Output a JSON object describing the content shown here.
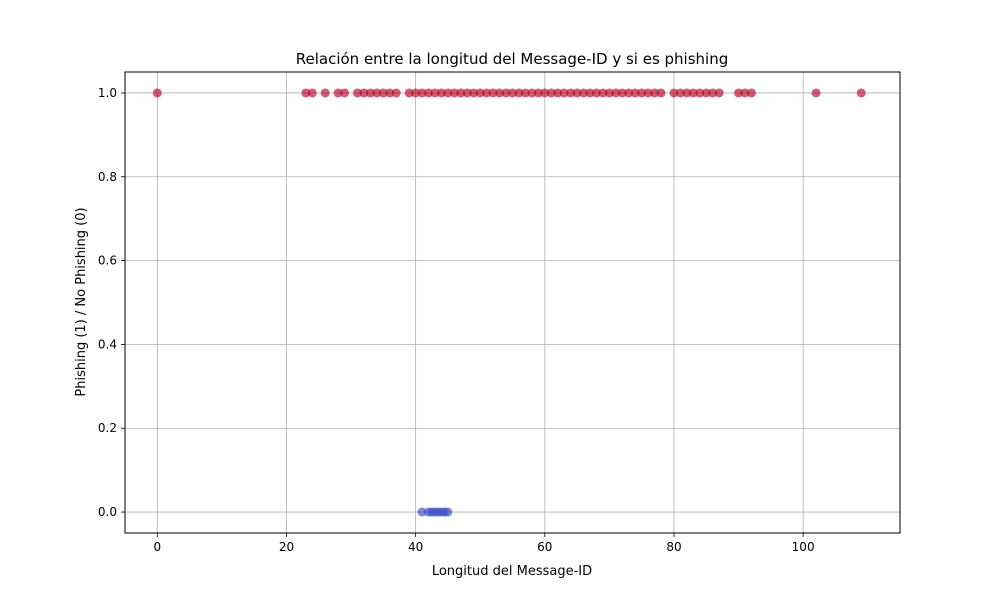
{
  "chart_data": {
    "type": "scatter",
    "title": "Relación entre la longitud del Message-ID y si es phishing",
    "xlabel": "Longitud del Message-ID",
    "ylabel": "Phishing (1) / No Phishing (0)",
    "xlim": [
      -5,
      115
    ],
    "ylim": [
      -0.05,
      1.05
    ],
    "xticks": [
      0,
      20,
      40,
      60,
      80,
      100
    ],
    "yticks": [
      0.0,
      0.2,
      0.4,
      0.6,
      0.8,
      1.0
    ],
    "xtick_labels": [
      "0",
      "20",
      "40",
      "60",
      "80",
      "100"
    ],
    "ytick_labels": [
      "0.0",
      "0.2",
      "0.4",
      "0.6",
      "0.8",
      "1.0"
    ],
    "grid": true,
    "colors": {
      "phishing": "#b40426",
      "no_phishing": "#3b4cc0",
      "grid": "#b0b0b0"
    },
    "series": [
      {
        "y": 1,
        "x": [
          0,
          23,
          24,
          26,
          28,
          29,
          31,
          32,
          33,
          34,
          35,
          36,
          37,
          39,
          40,
          41,
          42,
          43,
          44,
          45,
          46,
          47,
          48,
          49,
          50,
          51,
          52,
          53,
          54,
          55,
          56,
          57,
          58,
          59,
          60,
          61,
          62,
          63,
          64,
          65,
          66,
          67,
          68,
          69,
          70,
          71,
          72,
          73,
          74,
          75,
          76,
          77,
          78,
          80,
          81,
          82,
          83,
          84,
          85,
          86,
          87,
          90,
          91,
          92,
          102,
          109
        ]
      },
      {
        "y": 0,
        "x": [
          41,
          42,
          42.5,
          43,
          43.5,
          44,
          44.5,
          45
        ]
      }
    ]
  }
}
